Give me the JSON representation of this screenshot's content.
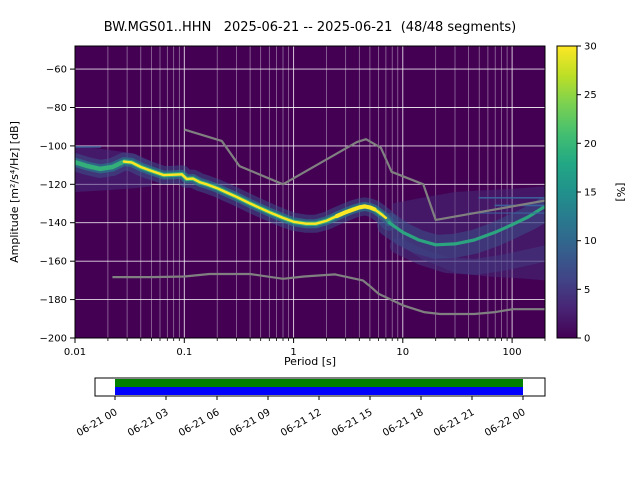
{
  "chart_data": {
    "type": "heatmap",
    "subtype": "ppsd-probabilistic-power-spectral-density",
    "title": "BW.MGS01..HHN   2025-06-21 -- 2025-06-21  (48/48 segments)",
    "xlabel": "Period [s]",
    "ylabel": "Amplitude [m²/s⁴/Hz] [dB]",
    "x_scale": "log",
    "xlim": [
      0.01,
      200
    ],
    "ylim": [
      -200,
      -48
    ],
    "grid": true,
    "background_color": "#440154",
    "colormap": "viridis",
    "colormap_stops": [
      "#440154",
      "#482475",
      "#414487",
      "#355f8d",
      "#2a788e",
      "#21918c",
      "#22a884",
      "#44bf70",
      "#7ad151",
      "#bddf26",
      "#fde725"
    ],
    "x_tick_values": [
      0.01,
      0.1,
      1,
      10,
      100
    ],
    "x_tick_labels": [
      "0.01",
      "0.1",
      "1",
      "10",
      "100"
    ],
    "y_tick_values": [
      -60,
      -80,
      -100,
      -120,
      -140,
      -160,
      -180,
      -200
    ],
    "y_tick_labels": [
      "−60",
      "−80",
      "−100",
      "−120",
      "−140",
      "−160",
      "−180",
      "−200"
    ],
    "colorbar": {
      "label": "[%]",
      "min": 0,
      "max": 30,
      "tick_values": [
        0,
        5,
        10,
        15,
        20,
        25,
        30
      ],
      "tick_labels": [
        "0",
        "5",
        "10",
        "15",
        "20",
        "25",
        "30"
      ]
    },
    "noise_models": {
      "color": "#808080",
      "width": 2.2,
      "high_points": [
        [
          0.1,
          -91.5
        ],
        [
          0.22,
          -97.4
        ],
        [
          0.32,
          -110.5
        ],
        [
          0.8,
          -120
        ],
        [
          3.8,
          -98
        ],
        [
          4.6,
          -96.5
        ],
        [
          6.3,
          -101
        ],
        [
          7.9,
          -113.5
        ],
        [
          15.4,
          -120
        ],
        [
          20,
          -138.5
        ],
        [
          200,
          -128.5
        ]
      ],
      "low_points": [
        [
          0.022,
          -168.3
        ],
        [
          0.05,
          -168.3
        ],
        [
          0.1,
          -168
        ],
        [
          0.17,
          -166.7
        ],
        [
          0.4,
          -166.7
        ],
        [
          0.8,
          -169.2
        ],
        [
          1.24,
          -168
        ],
        [
          2.4,
          -166.9
        ],
        [
          4.3,
          -170
        ],
        [
          5,
          -173
        ],
        [
          6,
          -177
        ],
        [
          10,
          -183
        ],
        [
          15.6,
          -186.5
        ],
        [
          21.9,
          -187.5
        ],
        [
          45,
          -187.5
        ],
        [
          70,
          -186.5
        ],
        [
          101,
          -185
        ],
        [
          200,
          -185
        ]
      ]
    },
    "psd_distribution": {
      "mode_points": [
        [
          0.01,
          -108.5
        ],
        [
          0.013,
          -110.5
        ],
        [
          0.017,
          -112
        ],
        [
          0.022,
          -111
        ],
        [
          0.028,
          -108.2
        ],
        [
          0.033,
          -108.6
        ],
        [
          0.04,
          -111
        ],
        [
          0.05,
          -113
        ],
        [
          0.065,
          -115.2
        ],
        [
          0.08,
          -115
        ],
        [
          0.095,
          -114.8
        ],
        [
          0.105,
          -117.2
        ],
        [
          0.12,
          -117
        ],
        [
          0.14,
          -119
        ],
        [
          0.16,
          -120
        ],
        [
          0.2,
          -122
        ],
        [
          0.25,
          -124.5
        ],
        [
          0.3,
          -126.5
        ],
        [
          0.4,
          -130
        ],
        [
          0.5,
          -132.5
        ],
        [
          0.6,
          -134.5
        ],
        [
          0.8,
          -137.5
        ],
        [
          1.0,
          -139.5
        ],
        [
          1.3,
          -140.5
        ],
        [
          1.6,
          -140.5
        ],
        [
          2.0,
          -139
        ],
        [
          2.5,
          -136.5
        ],
        [
          3.0,
          -134.5
        ],
        [
          3.5,
          -133
        ],
        [
          4.0,
          -132
        ],
        [
          4.5,
          -131.5
        ],
        [
          5.0,
          -132
        ],
        [
          5.5,
          -133
        ],
        [
          6.0,
          -134.5
        ],
        [
          6.5,
          -136
        ],
        [
          7.0,
          -137.5
        ],
        [
          7.5,
          -139.5
        ]
      ],
      "mode_layers": [
        {
          "color": "#39568c",
          "width": 18,
          "opacity": 0.5
        },
        {
          "color": "#287d8e",
          "width": 9,
          "opacity": 0.65
        },
        {
          "color": "#35b779",
          "width": 4.5,
          "opacity": 0.9
        }
      ],
      "core_points": [
        [
          0.028,
          -108.2
        ],
        [
          0.033,
          -108.6
        ],
        [
          0.04,
          -111
        ],
        [
          0.05,
          -113
        ],
        [
          0.065,
          -115.2
        ],
        [
          0.08,
          -115
        ],
        [
          0.095,
          -114.8
        ],
        [
          0.105,
          -117.2
        ],
        [
          0.12,
          -117
        ],
        [
          0.14,
          -119
        ],
        [
          0.16,
          -120
        ],
        [
          0.2,
          -122
        ],
        [
          0.25,
          -124.5
        ],
        [
          0.3,
          -126.5
        ],
        [
          0.4,
          -130
        ],
        [
          0.5,
          -132.5
        ],
        [
          0.6,
          -134.5
        ],
        [
          0.8,
          -137.5
        ],
        [
          1.0,
          -139.5
        ],
        [
          1.3,
          -140.5
        ],
        [
          1.6,
          -140.5
        ],
        [
          2.0,
          -139
        ],
        [
          2.5,
          -136.5
        ],
        [
          3.0,
          -134.5
        ],
        [
          3.5,
          -133
        ],
        [
          4.0,
          -132
        ],
        [
          4.5,
          -131.5
        ],
        [
          5.0,
          -132
        ],
        [
          5.5,
          -133
        ],
        [
          6.0,
          -134.5
        ],
        [
          6.5,
          -136
        ],
        [
          7.0,
          -137.5
        ]
      ],
      "core_layer": {
        "color": "#fde725",
        "width": 2.4,
        "opacity": 1
      },
      "extra_bands": [
        {
          "name": "long-period-spread-band",
          "points": [
            [
              7.5,
              -141
            ],
            [
              10,
              -146
            ],
            [
              14,
              -150
            ],
            [
              20,
              -152.5
            ],
            [
              30,
              -152
            ],
            [
              45,
              -150
            ],
            [
              70,
              -146
            ],
            [
              100,
              -142
            ],
            [
              140,
              -138
            ],
            [
              200,
              -133
            ]
          ],
          "color": "#39568c",
          "width": 24,
          "opacity": 0.5
        },
        {
          "name": "long-period-lower-haze-band",
          "points": [
            [
              9,
              -152
            ],
            [
              15,
              -158
            ],
            [
              25,
              -162
            ],
            [
              45,
              -163
            ],
            [
              80,
              -161
            ],
            [
              140,
              -158
            ],
            [
              200,
              -156
            ]
          ],
          "color": "#414287",
          "width": 16,
          "opacity": 0.45
        },
        {
          "name": "long-period-ridge-band",
          "points": [
            [
              7.5,
              -140
            ],
            [
              10,
              -145
            ],
            [
              14,
              -149
            ],
            [
              20,
              -151.5
            ],
            [
              30,
              -151
            ],
            [
              45,
              -149
            ],
            [
              70,
              -145
            ],
            [
              100,
              -141
            ],
            [
              140,
              -137
            ],
            [
              200,
              -131.5
            ]
          ],
          "color": "#2ab07f",
          "width": 3.2,
          "opacity": 0.9
        },
        {
          "name": "right-edge-stripe-1",
          "points": [
            [
              50,
              -127
            ],
            [
              200,
              -127
            ]
          ],
          "color": "#3b6aa0",
          "width": 1.6,
          "opacity": 0.85
        },
        {
          "name": "right-edge-stripe-2",
          "points": [
            [
              70,
              -131
            ],
            [
              200,
              -131
            ]
          ],
          "color": "#3b6aa0",
          "width": 1.6,
          "opacity": 0.85
        },
        {
          "name": "right-edge-stripe-3",
          "points": [
            [
              40,
              -135
            ],
            [
              200,
              -135
            ]
          ],
          "color": "#3b6aa0",
          "width": 1.4,
          "opacity": 0.7
        },
        {
          "name": "left-edge-stripe",
          "points": [
            [
              0.01,
              -100.5
            ],
            [
              0.017,
              -100.5
            ]
          ],
          "color": "#3b6aa0",
          "width": 1.6,
          "opacity": 0.8
        },
        {
          "name": "secondary-microseism-bright-band",
          "points": [
            [
              2.5,
              -136.5
            ],
            [
              3.0,
              -134.5
            ],
            [
              4.0,
              -132
            ],
            [
              4.5,
              -131.5
            ],
            [
              5.0,
              -132
            ],
            [
              5.5,
              -133
            ]
          ],
          "color": "#fde725",
          "width": 4,
          "opacity": 1
        }
      ],
      "haze_polygons": [
        {
          "name": "long-period-haze",
          "upper": [
            [
              8,
              -130
            ],
            [
              15,
              -127
            ],
            [
              30,
              -124
            ],
            [
              60,
              -123
            ],
            [
              120,
              -122
            ],
            [
              200,
              -121
            ]
          ],
          "lower": [
            [
              200,
              -170
            ],
            [
              120,
              -169
            ],
            [
              60,
              -168
            ],
            [
              30,
              -166
            ],
            [
              15,
              -159
            ],
            [
              8,
              -149
            ]
          ],
          "color": "#46327e",
          "opacity": 0.45
        },
        {
          "name": "short-period-haze",
          "upper": [
            [
              0.01,
              -100
            ],
            [
              0.02,
              -102
            ],
            [
              0.035,
              -104
            ],
            [
              0.05,
              -108
            ]
          ],
          "lower": [
            [
              0.05,
              -121
            ],
            [
              0.035,
              -122
            ],
            [
              0.02,
              -123
            ],
            [
              0.01,
              -124
            ]
          ],
          "color": "#46327e",
          "opacity": 0.5
        }
      ]
    },
    "coverage_bar": {
      "tick_labels": [
        "06-21 00",
        "06-21 03",
        "06-21 06",
        "06-21 09",
        "06-21 12",
        "06-21 15",
        "06-21 18",
        "06-21 21",
        "06-22 00"
      ],
      "top_color": "#008000",
      "bottom_color": "#0000ff",
      "frame_color": "#000000"
    }
  }
}
